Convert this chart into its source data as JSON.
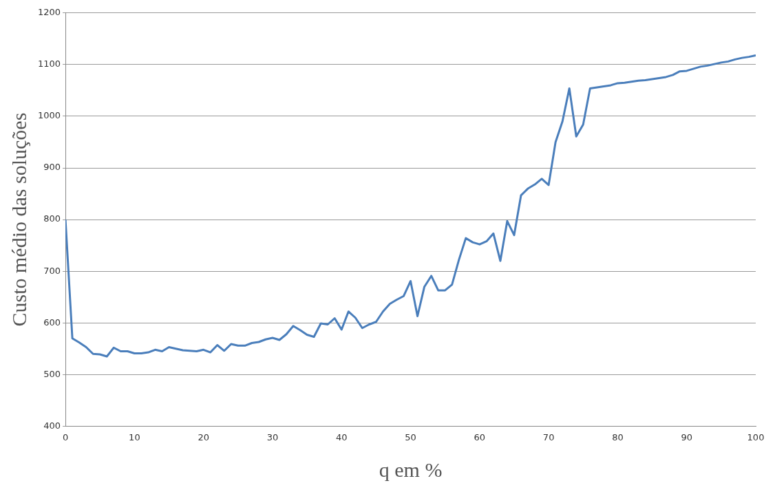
{
  "chart_data": {
    "type": "line",
    "xlabel": "q em %",
    "ylabel": "Custo médio das soluções",
    "x": [
      0,
      1,
      2,
      3,
      4,
      5,
      6,
      7,
      8,
      9,
      10,
      11,
      12,
      13,
      14,
      15,
      16,
      17,
      18,
      19,
      20,
      21,
      22,
      23,
      24,
      25,
      26,
      27,
      28,
      29,
      30,
      31,
      32,
      33,
      34,
      35,
      36,
      37,
      38,
      39,
      40,
      41,
      42,
      43,
      44,
      45,
      46,
      47,
      48,
      49,
      50,
      51,
      52,
      53,
      54,
      55,
      56,
      57,
      58,
      59,
      60,
      61,
      62,
      63,
      64,
      65,
      66,
      67,
      68,
      69,
      70,
      71,
      72,
      73,
      74,
      75,
      76,
      77,
      78,
      79,
      80,
      81,
      82,
      83,
      84,
      85,
      86,
      87,
      88,
      89,
      90,
      91,
      92,
      93,
      94,
      95,
      96,
      97,
      98,
      99,
      100
    ],
    "series": [
      {
        "color": "#4a7ebb",
        "values": [
          800,
          570,
          562,
          553,
          540,
          539,
          535,
          552,
          545,
          545,
          541,
          541,
          543,
          548,
          545,
          553,
          550,
          547,
          546,
          545,
          548,
          543,
          557,
          546,
          559,
          556,
          556,
          561,
          563,
          568,
          571,
          567,
          578,
          594,
          586,
          577,
          573,
          599,
          597,
          609,
          587,
          622,
          610,
          590,
          597,
          602,
          622,
          637,
          645,
          652,
          681,
          613,
          670,
          691,
          663,
          663,
          674,
          722,
          764,
          756,
          752,
          758,
          773,
          720,
          797,
          770,
          847,
          860,
          868,
          879,
          867,
          950,
          990,
          1054,
          961,
          984,
          1054,
          1056,
          1058,
          1060,
          1064,
          1065,
          1067,
          1069,
          1070,
          1072,
          1074,
          1076,
          1080,
          1087,
          1088,
          1092,
          1096,
          1098,
          1101,
          1104,
          1106,
          1110,
          1113,
          1115,
          1118
        ]
      }
    ],
    "xlim": [
      0,
      100
    ],
    "xticks": [
      0,
      10,
      20,
      30,
      40,
      50,
      60,
      70,
      80,
      90,
      100
    ],
    "ylim": [
      400,
      1200
    ],
    "yticks": [
      400,
      500,
      600,
      700,
      800,
      900,
      1000,
      1100,
      1200
    ],
    "grid": "y",
    "legend": false,
    "marker": "none",
    "line_style": "solid"
  }
}
